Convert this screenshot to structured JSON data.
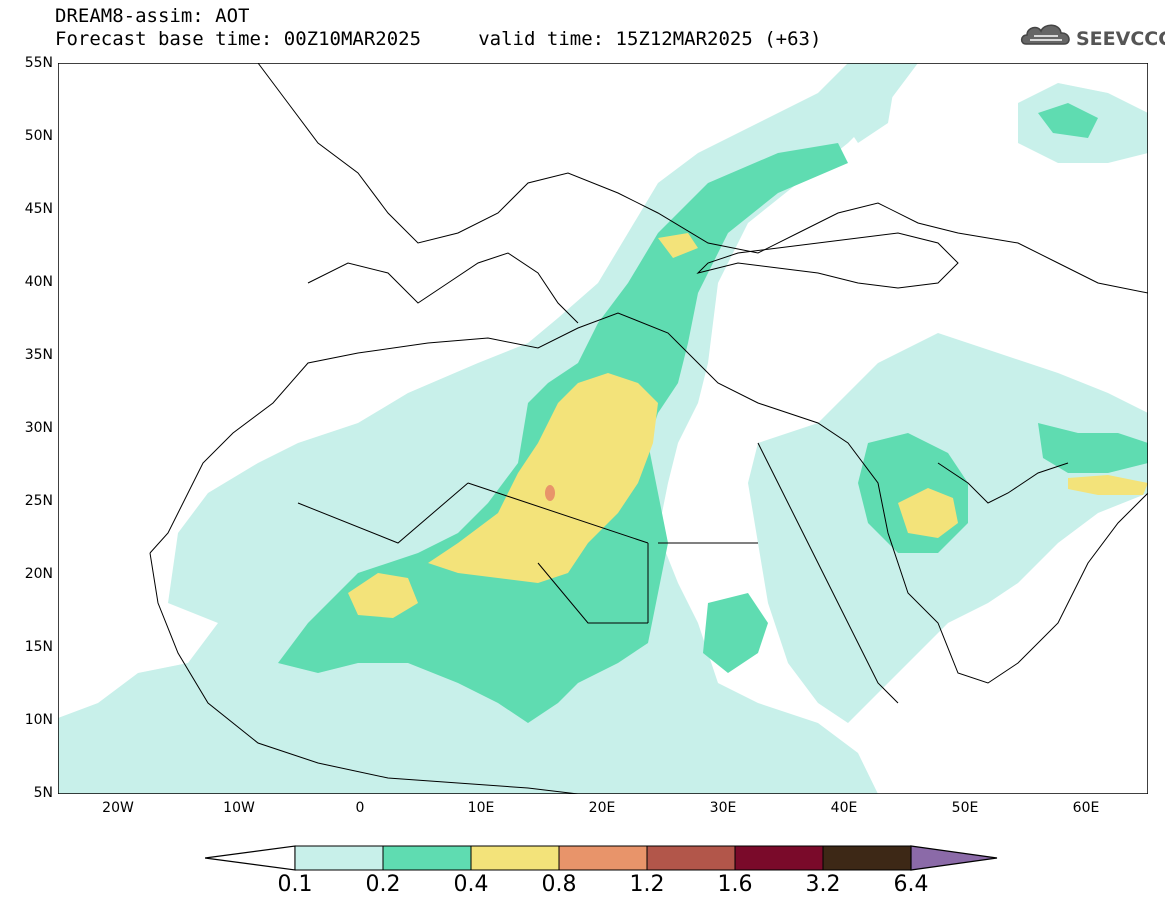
{
  "header": {
    "line1": "DREAM8-assim: AOT",
    "line2": "Forecast base time: 00Z10MAR2025     valid time: 15Z12MAR2025 (+63)"
  },
  "logo": {
    "text": "SEEVCCC",
    "icon": "cloud-icon"
  },
  "map": {
    "lat_labels": [
      "55N",
      "50N",
      "45N",
      "40N",
      "35N",
      "30N",
      "25N",
      "20N",
      "15N",
      "10N",
      "5N"
    ],
    "lon_labels": [
      "20W",
      "10W",
      "0",
      "10E",
      "20E",
      "30E",
      "40E",
      "50E",
      "60E"
    ],
    "lon_range": [
      -25,
      65
    ],
    "lat_range": [
      5,
      55
    ]
  },
  "colorbar": {
    "labels": [
      "0.1",
      "0.2",
      "0.4",
      "0.8",
      "1.2",
      "1.6",
      "3.2",
      "6.4"
    ],
    "colors": [
      "#c8f0ea",
      "#5fdcb1",
      "#f3e37a",
      "#e8946a",
      "#b2564a",
      "#7a0a2a",
      "#3d2816",
      "#8b6aa8"
    ]
  }
}
